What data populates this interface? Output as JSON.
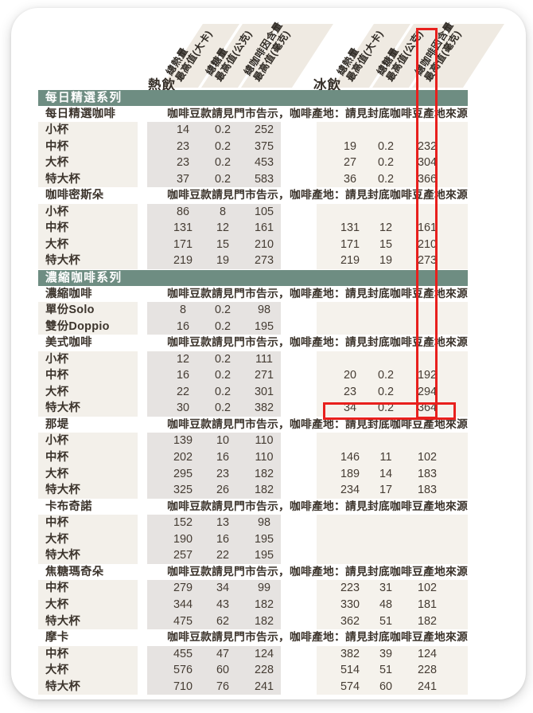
{
  "header": {
    "hot_label": "熱飲",
    "iced_label": "冰飲",
    "columns": [
      {
        "name": "總熱量",
        "unit": "最高值(大卡)"
      },
      {
        "name": "總糖量",
        "unit": "最高值(公克)"
      },
      {
        "name": "總咖啡因含量",
        "unit": "最高值(毫克)"
      }
    ]
  },
  "annotations": {
    "highlight_color": "#e8201d",
    "column_highlight": "iced-caffeine-values-column",
    "row_highlight": "americano-extra-large-iced-values"
  },
  "colors": {
    "section_bar": "#6e8d82",
    "hot_block": "#e6e3e1",
    "iced_block": "#f5f2ec",
    "label_block": "#f3f0ea",
    "header_stripe": "#efeae2",
    "text": "#3c342c"
  },
  "table": {
    "note_text": "咖啡豆款請見門市告示，咖啡產地：請見封底咖啡豆產地來源",
    "rows": [
      {
        "type": "section",
        "label": "每日精選系列"
      },
      {
        "type": "product",
        "label": "每日精選咖啡"
      },
      {
        "type": "size",
        "label": "小杯",
        "hot": [
          "14",
          "0.2",
          "252"
        ],
        "iced": [
          "",
          "",
          ""
        ]
      },
      {
        "type": "size",
        "label": "中杯",
        "hot": [
          "23",
          "0.2",
          "375"
        ],
        "iced": [
          "19",
          "0.2",
          "232"
        ]
      },
      {
        "type": "size",
        "label": "大杯",
        "hot": [
          "23",
          "0.2",
          "453"
        ],
        "iced": [
          "27",
          "0.2",
          "304"
        ]
      },
      {
        "type": "size",
        "label": "特大杯",
        "hot": [
          "37",
          "0.2",
          "583"
        ],
        "iced": [
          "36",
          "0.2",
          "366"
        ]
      },
      {
        "type": "product",
        "label": "咖啡密斯朵"
      },
      {
        "type": "size",
        "label": "小杯",
        "hot": [
          "86",
          "8",
          "105"
        ],
        "iced": [
          "",
          "",
          ""
        ]
      },
      {
        "type": "size",
        "label": "中杯",
        "hot": [
          "131",
          "12",
          "161"
        ],
        "iced": [
          "131",
          "12",
          "161"
        ]
      },
      {
        "type": "size",
        "label": "大杯",
        "hot": [
          "171",
          "15",
          "210"
        ],
        "iced": [
          "171",
          "15",
          "210"
        ]
      },
      {
        "type": "size",
        "label": "特大杯",
        "hot": [
          "219",
          "19",
          "273"
        ],
        "iced": [
          "219",
          "19",
          "273"
        ]
      },
      {
        "type": "section",
        "label": "濃縮咖啡系列"
      },
      {
        "type": "product",
        "label": "濃縮咖啡"
      },
      {
        "type": "size",
        "label": "單份Solo",
        "hot": [
          "8",
          "0.2",
          "98"
        ],
        "iced": [
          "",
          "",
          ""
        ]
      },
      {
        "type": "size",
        "label": "雙份Doppio",
        "hot": [
          "16",
          "0.2",
          "195"
        ],
        "iced": [
          "",
          "",
          ""
        ]
      },
      {
        "type": "product",
        "label": "美式咖啡"
      },
      {
        "type": "size",
        "label": "小杯",
        "hot": [
          "12",
          "0.2",
          "111"
        ],
        "iced": [
          "",
          "",
          ""
        ]
      },
      {
        "type": "size",
        "label": "中杯",
        "hot": [
          "16",
          "0.2",
          "271"
        ],
        "iced": [
          "20",
          "0.2",
          "192"
        ]
      },
      {
        "type": "size",
        "label": "大杯",
        "hot": [
          "22",
          "0.2",
          "301"
        ],
        "iced": [
          "23",
          "0.2",
          "294"
        ]
      },
      {
        "type": "size",
        "label": "特大杯",
        "hot": [
          "30",
          "0.2",
          "382"
        ],
        "iced": [
          "34",
          "0.2",
          "364"
        ]
      },
      {
        "type": "product",
        "label": "那堤"
      },
      {
        "type": "size",
        "label": "小杯",
        "hot": [
          "139",
          "10",
          "110"
        ],
        "iced": [
          "",
          "",
          ""
        ]
      },
      {
        "type": "size",
        "label": "中杯",
        "hot": [
          "202",
          "16",
          "110"
        ],
        "iced": [
          "146",
          "11",
          "102"
        ]
      },
      {
        "type": "size",
        "label": "大杯",
        "hot": [
          "295",
          "23",
          "182"
        ],
        "iced": [
          "189",
          "14",
          "183"
        ]
      },
      {
        "type": "size",
        "label": "特大杯",
        "hot": [
          "325",
          "26",
          "182"
        ],
        "iced": [
          "234",
          "17",
          "183"
        ]
      },
      {
        "type": "product",
        "label": "卡布奇諾"
      },
      {
        "type": "size",
        "label": "中杯",
        "hot": [
          "152",
          "13",
          "98"
        ],
        "iced": [
          "",
          "",
          ""
        ]
      },
      {
        "type": "size",
        "label": "大杯",
        "hot": [
          "190",
          "16",
          "195"
        ],
        "iced": [
          "",
          "",
          ""
        ]
      },
      {
        "type": "size",
        "label": "特大杯",
        "hot": [
          "257",
          "22",
          "195"
        ],
        "iced": [
          "",
          "",
          ""
        ]
      },
      {
        "type": "product",
        "label": "焦糖瑪奇朵"
      },
      {
        "type": "size",
        "label": "中杯",
        "hot": [
          "279",
          "34",
          "99"
        ],
        "iced": [
          "223",
          "31",
          "102"
        ]
      },
      {
        "type": "size",
        "label": "大杯",
        "hot": [
          "344",
          "43",
          "182"
        ],
        "iced": [
          "330",
          "48",
          "181"
        ]
      },
      {
        "type": "size",
        "label": "特大杯",
        "hot": [
          "475",
          "62",
          "182"
        ],
        "iced": [
          "362",
          "51",
          "182"
        ]
      },
      {
        "type": "product",
        "label": "摩卡"
      },
      {
        "type": "size",
        "label": "中杯",
        "hot": [
          "455",
          "47",
          "124"
        ],
        "iced": [
          "382",
          "39",
          "124"
        ]
      },
      {
        "type": "size",
        "label": "大杯",
        "hot": [
          "576",
          "60",
          "228"
        ],
        "iced": [
          "514",
          "51",
          "228"
        ]
      },
      {
        "type": "size",
        "label": "特大杯",
        "hot": [
          "710",
          "76",
          "241"
        ],
        "iced": [
          "574",
          "60",
          "241"
        ]
      }
    ]
  }
}
